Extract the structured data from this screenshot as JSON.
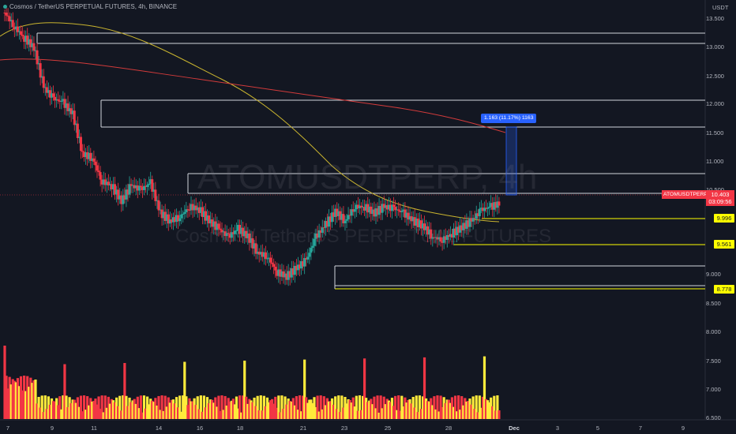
{
  "header": {
    "symbol_name": "Cosmos / TetherUS PERPETUAL FUTURES",
    "interval": "4h",
    "exchange": "BINANCE"
  },
  "watermark": {
    "ticker": "ATOMUSDTPERP, 4h",
    "name": "Cosmos / TetherUS PERPETUAL FUTURES"
  },
  "price_axis": {
    "unit": "USDT",
    "ticks": [
      "13.500",
      "13.000",
      "12.500",
      "12.000",
      "11.500",
      "11.000",
      "10.500",
      "9.000",
      "8.500",
      "8.000",
      "7.500",
      "7.000",
      "6.500"
    ]
  },
  "time_axis": {
    "ticks": [
      "7",
      "9",
      "11",
      "14",
      "16",
      "18",
      "21",
      "23",
      "25",
      "28",
      "Dec",
      "3",
      "5",
      "7",
      "9"
    ],
    "bold": "Dec"
  },
  "current_price": {
    "symbol": "ATOMUSDTPERP",
    "value": "10.403",
    "countdown": "03:09:56",
    "color": "#f23645"
  },
  "levels": [
    {
      "label": "9.996",
      "style": "yellow"
    },
    {
      "label": "9.561",
      "style": "yellow"
    },
    {
      "label": "8.778",
      "style": "yellow"
    }
  ],
  "measure_label": "1.163 (11.17%) 1163",
  "colors": {
    "up": "#26a69a",
    "down": "#f23645",
    "ma_fast": "#c9b42f",
    "ma_slow": "#d33b3b",
    "bg": "#131722",
    "vol_up": "#ffeb3b",
    "vol_down": "#f23645"
  }
}
